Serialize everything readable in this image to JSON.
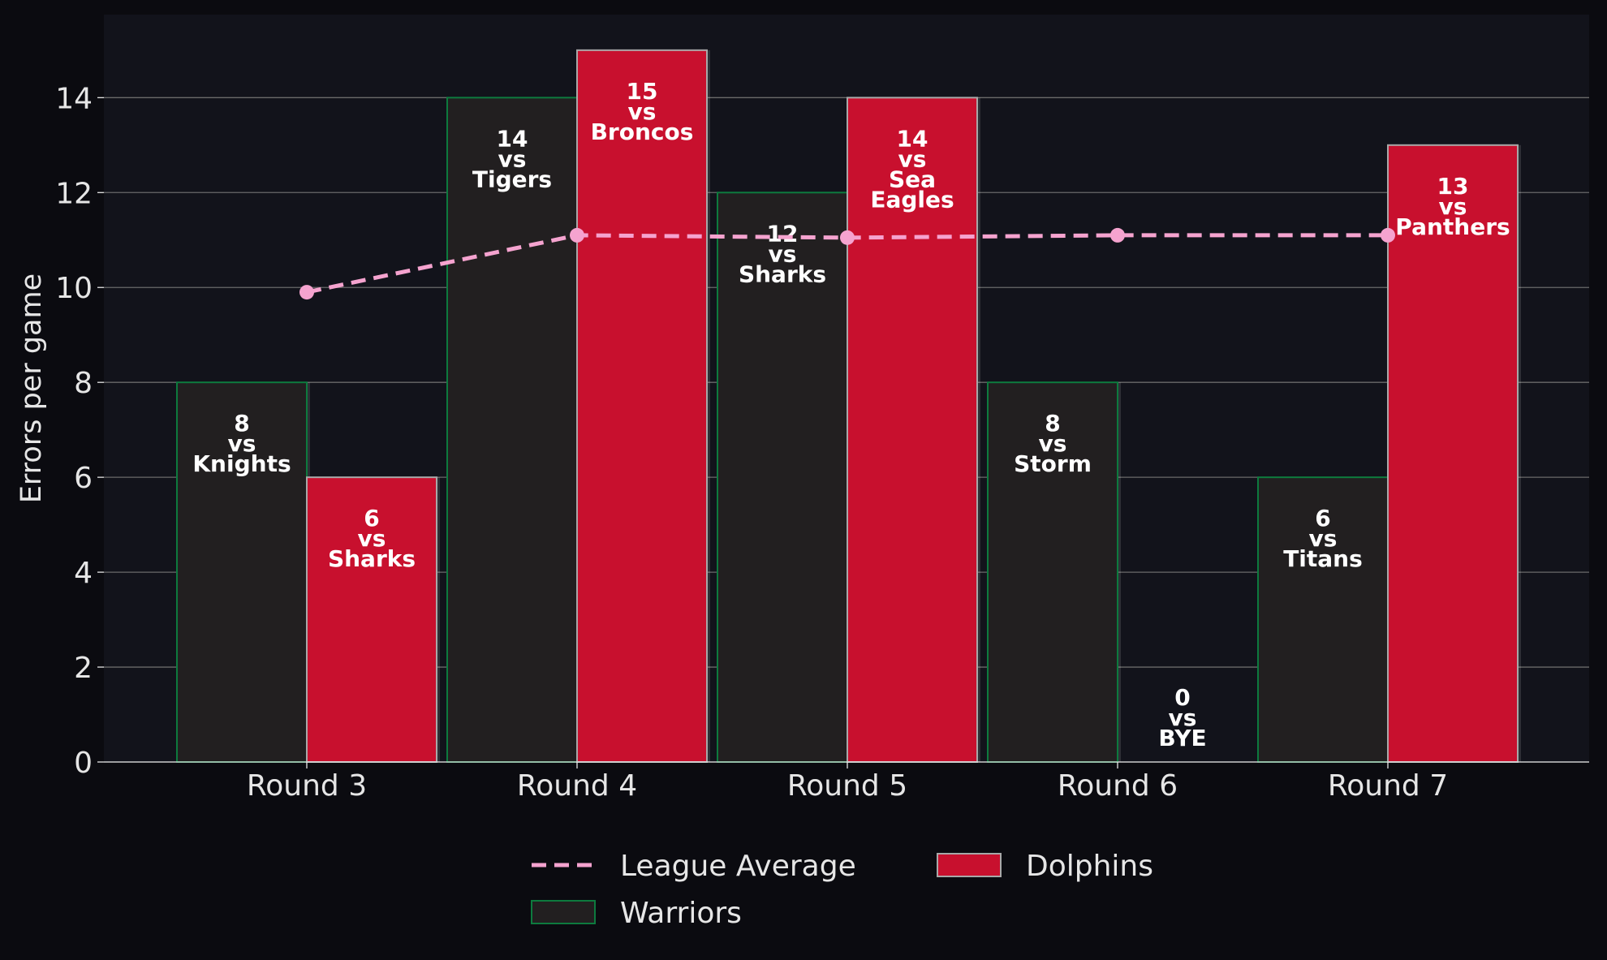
{
  "chart_data": {
    "type": "bar",
    "categories": [
      "Round 3",
      "Round 4",
      "Round 5",
      "Round 6",
      "Round 7"
    ],
    "ylabel": "Errors per game",
    "xlabel": "",
    "ylim": [
      0,
      15.75
    ],
    "yticks": [
      0,
      2,
      4,
      6,
      8,
      10,
      12,
      14
    ],
    "grid": true,
    "legend_position": "bottom-center",
    "series": [
      {
        "name": "Warriors",
        "color": "#221f20",
        "edge_color": "#0d7a3e",
        "values": [
          8,
          14,
          12,
          8,
          6
        ],
        "bar_labels": [
          [
            "8",
            "vs",
            "Knights"
          ],
          [
            "14",
            "vs",
            "Tigers"
          ],
          [
            "12",
            "vs",
            "Sharks"
          ],
          [
            "8",
            "vs",
            "Storm"
          ],
          [
            "6",
            "vs",
            "Titans"
          ]
        ]
      },
      {
        "name": "Dolphins",
        "color": "#c8102e",
        "edge_color": "#a8a8a8",
        "values": [
          6,
          15,
          14,
          0,
          13
        ],
        "bar_labels": [
          [
            "6",
            "vs",
            "Sharks"
          ],
          [
            "15",
            "vs",
            "Broncos"
          ],
          [
            "14",
            "vs",
            "Sea",
            "Eagles"
          ],
          [
            "0",
            "vs",
            "BYE"
          ],
          [
            "13",
            "vs",
            "Panthers"
          ]
        ]
      },
      {
        "name": "League Average",
        "type": "line",
        "style": "dashed",
        "color": "#f5a3cf",
        "values": [
          9.9,
          11.1,
          11.05,
          11.1,
          11.1
        ]
      }
    ],
    "legend": [
      {
        "label": "League Average",
        "kind": "line",
        "color": "#f5a3cf"
      },
      {
        "label": "Warriors",
        "kind": "patch",
        "color": "#221f20",
        "edge": "#0d7a3e"
      },
      {
        "label": "Dolphins",
        "kind": "patch",
        "color": "#c8102e",
        "edge": "#a8a8a8"
      }
    ],
    "colors": {
      "background": "#0b0b10",
      "plot_background": "#12131b",
      "grid": "#6a6a6a",
      "text": "#e6e6e6",
      "bar_text": "#ffffff"
    }
  }
}
